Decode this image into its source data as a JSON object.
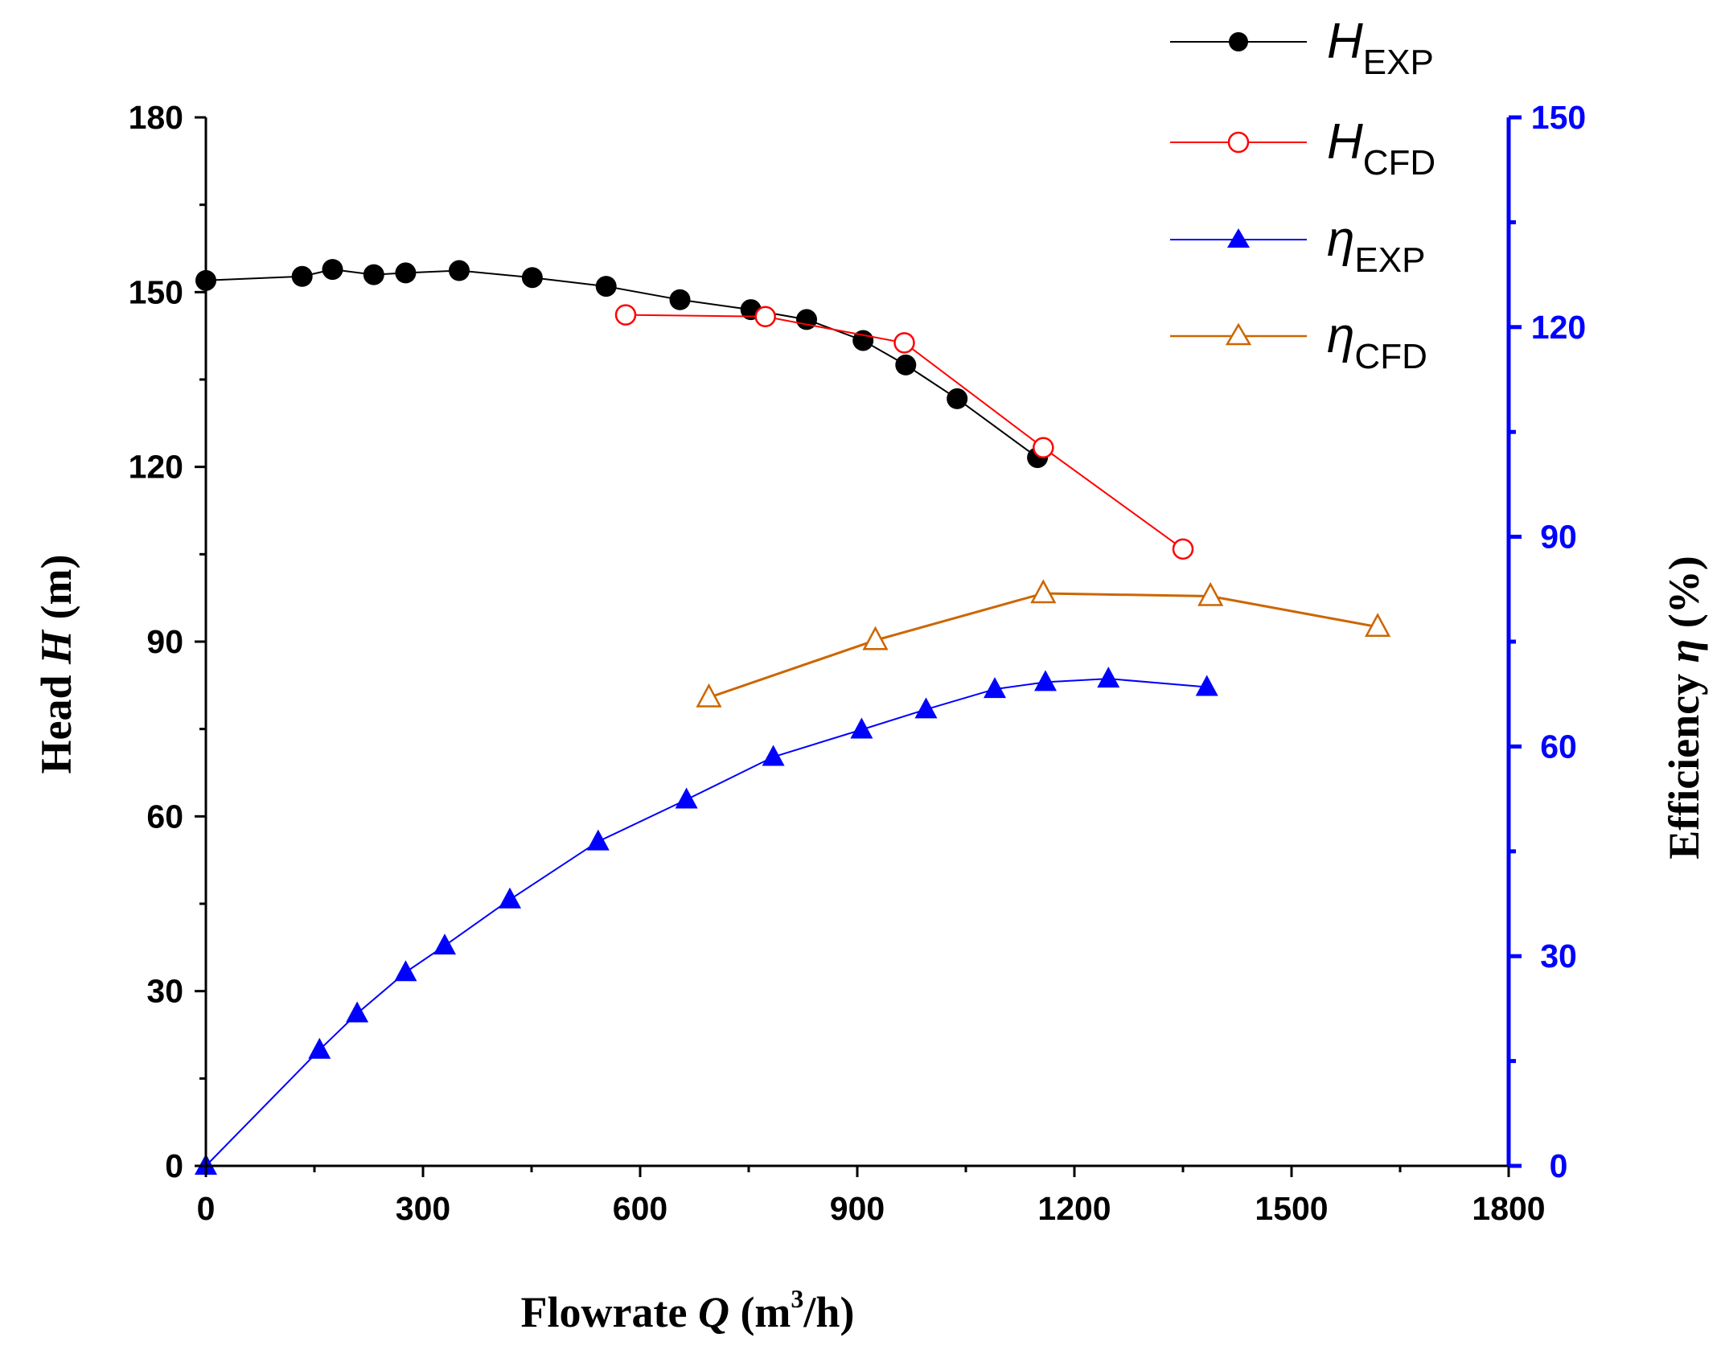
{
  "chart_data": {
    "type": "line",
    "title": "",
    "xlabel": "Flowrate Q (m³/h)",
    "xlabel_parts": {
      "prefix": "Flowrate ",
      "var": "Q",
      "unit_pre": " (m",
      "unit_sup": "3",
      "unit_post": "/h)"
    },
    "ylabel_left": "Head H (m)",
    "ylabel_left_parts": {
      "prefix": "Head ",
      "var": "H",
      "unit": " (m)"
    },
    "ylabel_right": "Efficiency η (%)",
    "ylabel_right_parts": {
      "prefix": "Efficiency ",
      "var": "η",
      "unit": " (%)"
    },
    "xlim": [
      0,
      1800
    ],
    "ylim_left": [
      0,
      180
    ],
    "ylim_right": [
      0,
      150
    ],
    "xticks": [
      "0",
      "300",
      "600",
      "900",
      "1200",
      "1500",
      "1800"
    ],
    "yticks_left": [
      "0",
      "30",
      "60",
      "90",
      "120",
      "150",
      "180"
    ],
    "yticks_right": [
      "0",
      "30",
      "60",
      "90",
      "120",
      "150"
    ],
    "grid": false,
    "legend_position": "top-right, outside plot",
    "series": [
      {
        "name": "H_EXP",
        "legend_main": "H",
        "legend_sub": "EXP",
        "axis": "left",
        "color": "#000000",
        "marker": "filled-circle",
        "x": [
          0,
          133,
          175,
          232,
          276,
          350,
          451,
          553,
          655,
          753,
          830,
          908,
          967,
          1038,
          1149
        ],
        "y": [
          152,
          152.7,
          153.9,
          153,
          153.3,
          153.7,
          152.5,
          151,
          148.7,
          147,
          145.3,
          141.7,
          137.5,
          131.7,
          121.6
        ]
      },
      {
        "name": "H_CFD",
        "legend_main": "H",
        "legend_sub": "CFD",
        "axis": "left",
        "color": "#ff0000",
        "marker": "open-circle",
        "x": [
          580,
          773,
          965,
          1157,
          1350
        ],
        "y": [
          146.1,
          145.8,
          141.3,
          123.3,
          105.9
        ]
      },
      {
        "name": "η_EXP",
        "legend_main": "η",
        "legend_sub": "EXP",
        "axis": "right",
        "color": "#0000ff",
        "marker": "filled-triangle",
        "x": [
          0,
          157,
          209,
          276,
          330,
          420,
          542,
          664,
          784,
          906,
          995,
          1090,
          1160,
          1247,
          1383
        ],
        "y": [
          0,
          16.6,
          21.8,
          27.7,
          31.5,
          38.1,
          46.4,
          52.4,
          58.5,
          62.4,
          65.3,
          68.2,
          69.2,
          69.7,
          68.5
        ]
      },
      {
        "name": "η_CFD",
        "legend_main": "η",
        "legend_sub": "CFD",
        "axis": "right",
        "color": "#cc6600",
        "marker": "open-triangle",
        "x": [
          695,
          925,
          1157,
          1388,
          1619
        ],
        "y": [
          67.0,
          75.2,
          81.9,
          81.5,
          77.1
        ]
      }
    ]
  }
}
